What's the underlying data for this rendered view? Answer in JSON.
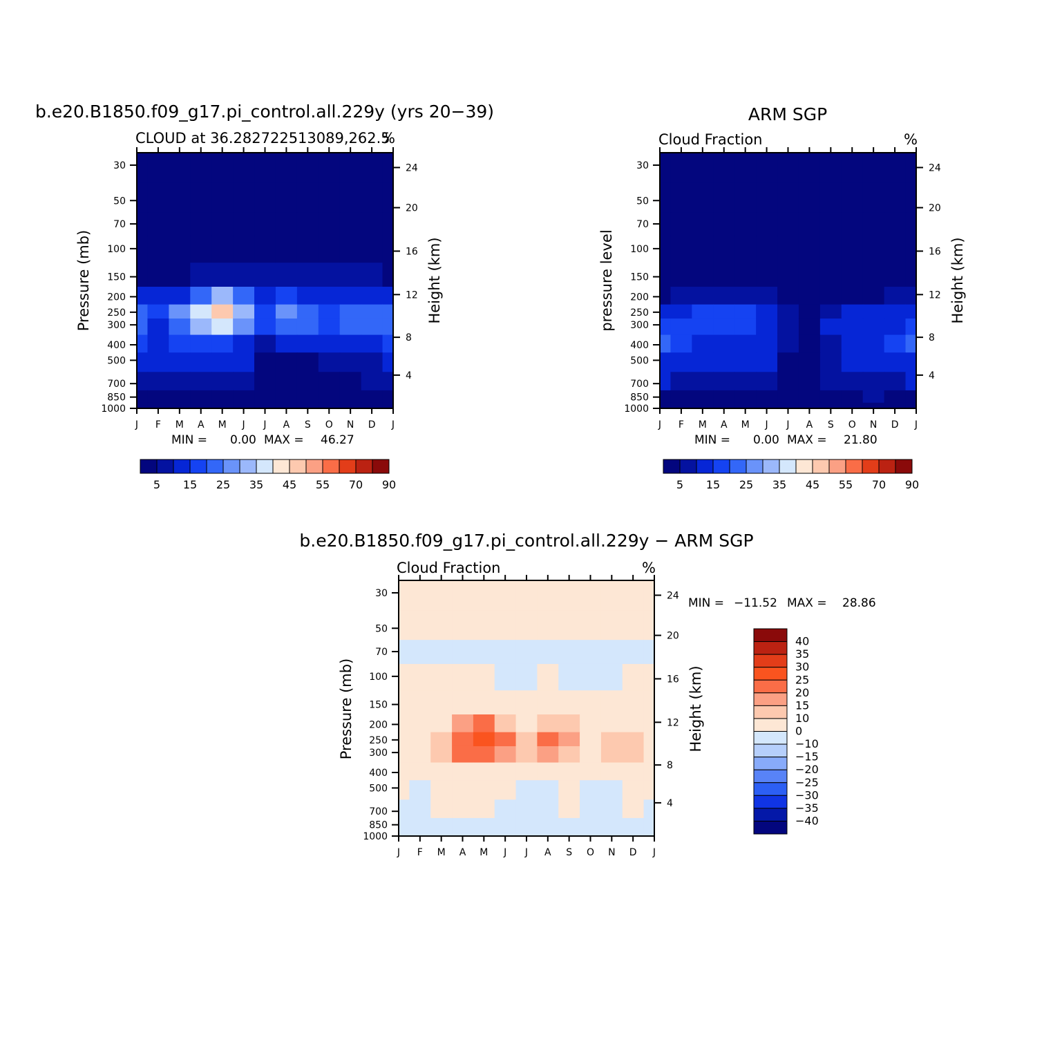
{
  "figure": {
    "colormap": [
      "#03067e",
      "#0412a0",
      "#0626d6",
      "#1543f2",
      "#3367f8",
      "#6a93fa",
      "#9bb8fb",
      "#d4e7fc",
      "#fde7d5",
      "#fdc9af",
      "#fba084",
      "#fa6d47",
      "#e33d19",
      "#bb2212",
      "#8a0a0a"
    ]
  },
  "chart_data": [
    {
      "id": "model",
      "type": "heatmap",
      "title": "b.e20.B1850.f09_g17.pi_control.all.229y (yrs 20−39)",
      "subtitle": "CLOUD at 36.28272251308 9,262.5",
      "subtitle_exact": "CLOUD at 36.282722513089,262.5",
      "units": "%",
      "xlabel": "",
      "ylabel": "Pressure (mb)",
      "y2label": "Height (km)",
      "x_ticks": [
        "J",
        "F",
        "M",
        "A",
        "M",
        "J",
        "J",
        "A",
        "S",
        "O",
        "N",
        "D",
        "J"
      ],
      "y_ticks": [
        "30",
        "50",
        "70",
        "100",
        "150",
        "200",
        "250",
        "300",
        "400",
        "500",
        "700",
        "850",
        "1000"
      ],
      "y2_ticks": [
        "24",
        "20",
        "16",
        "12",
        "8",
        "4"
      ],
      "min_label": "MIN =",
      "min_value": "0.00",
      "max_label": "MAX =",
      "max_value": "46.27",
      "colorbar_labels": [
        "5",
        "15",
        "25",
        "35",
        "45",
        "55",
        "70",
        "90"
      ],
      "months": [
        "J",
        "F",
        "M",
        "A",
        "M",
        "J",
        "J",
        "A",
        "S",
        "O",
        "N",
        "D",
        "J"
      ],
      "levels_mb": [
        30,
        50,
        70,
        100,
        150,
        200,
        250,
        300,
        400,
        500,
        700,
        850,
        1000
      ],
      "values": [
        [
          0,
          0,
          0,
          0,
          0,
          0,
          0,
          0,
          0,
          0,
          0,
          0,
          0
        ],
        [
          0,
          0,
          0,
          0,
          0,
          0,
          0,
          0,
          0,
          0,
          0,
          0,
          0
        ],
        [
          0,
          0,
          0,
          0,
          0,
          0,
          0,
          0,
          0,
          0,
          0,
          0,
          0
        ],
        [
          0,
          0,
          0,
          0,
          0,
          0,
          0,
          0,
          0,
          0,
          0,
          0,
          0
        ],
        [
          4,
          3,
          4,
          6,
          7,
          7,
          6,
          6,
          6,
          5,
          5,
          5,
          4
        ],
        [
          12,
          12,
          14,
          24,
          30,
          24,
          12,
          16,
          14,
          11,
          12,
          12,
          12
        ],
        [
          22,
          16,
          25,
          38,
          46,
          33,
          18,
          26,
          22,
          18,
          22,
          24,
          22
        ],
        [
          22,
          14,
          22,
          32,
          36,
          28,
          16,
          22,
          20,
          18,
          20,
          22,
          22
        ],
        [
          16,
          14,
          16,
          18,
          18,
          14,
          6,
          10,
          12,
          10,
          12,
          14,
          16
        ],
        [
          12,
          10,
          10,
          12,
          12,
          10,
          4,
          4,
          4,
          6,
          6,
          8,
          12
        ],
        [
          8,
          8,
          8,
          8,
          8,
          6,
          2,
          2,
          2,
          4,
          4,
          6,
          8
        ],
        [
          4,
          4,
          4,
          4,
          4,
          4,
          2,
          2,
          2,
          2,
          2,
          4,
          4
        ],
        [
          2,
          2,
          2,
          2,
          2,
          2,
          2,
          2,
          2,
          2,
          2,
          2,
          2
        ]
      ]
    },
    {
      "id": "obs",
      "type": "heatmap",
      "title": "ARM SGP",
      "subtitle": "Cloud Fraction",
      "units": "%",
      "xlabel": "",
      "ylabel": "pressure level",
      "y2label": "Height (km)",
      "x_ticks": [
        "J",
        "F",
        "M",
        "A",
        "M",
        "J",
        "J",
        "A",
        "S",
        "O",
        "N",
        "D",
        "J"
      ],
      "y_ticks": [
        "30",
        "50",
        "70",
        "100",
        "150",
        "200",
        "250",
        "300",
        "400",
        "500",
        "700",
        "850",
        "1000"
      ],
      "y2_ticks": [
        "24",
        "20",
        "16",
        "12",
        "8",
        "4"
      ],
      "min_label": "MIN =",
      "min_value": "0.00",
      "max_label": "MAX =",
      "max_value": "21.80",
      "colorbar_labels": [
        "5",
        "15",
        "25",
        "35",
        "45",
        "55",
        "70",
        "90"
      ],
      "months": [
        "J",
        "F",
        "M",
        "A",
        "M",
        "J",
        "J",
        "A",
        "S",
        "O",
        "N",
        "D",
        "J"
      ],
      "levels_mb": [
        30,
        50,
        70,
        100,
        150,
        200,
        250,
        300,
        400,
        500,
        700,
        850,
        1000
      ],
      "values": [
        [
          0,
          0,
          0,
          0,
          0,
          0,
          0,
          0,
          0,
          0,
          0,
          0,
          0
        ],
        [
          0,
          0,
          0,
          0,
          0,
          0,
          0,
          0,
          0,
          0,
          0,
          0,
          0
        ],
        [
          0,
          0,
          0,
          0,
          0,
          0,
          0,
          0,
          0,
          0,
          0,
          0,
          0
        ],
        [
          0,
          0,
          0,
          0,
          0,
          0,
          0,
          0,
          0,
          0,
          0,
          0,
          0
        ],
        [
          0,
          0,
          0,
          0,
          0,
          0,
          0,
          0,
          0,
          0,
          0,
          0,
          0
        ],
        [
          3,
          6,
          8,
          8,
          8,
          6,
          4,
          2,
          2,
          3,
          4,
          5,
          6
        ],
        [
          14,
          14,
          15,
          15,
          15,
          12,
          8,
          4,
          8,
          10,
          11,
          12,
          14
        ],
        [
          16,
          15,
          15,
          16,
          16,
          14,
          6,
          4,
          10,
          12,
          12,
          13,
          16
        ],
        [
          20,
          16,
          12,
          12,
          12,
          11,
          5,
          4,
          6,
          10,
          10,
          18,
          20
        ],
        [
          14,
          14,
          12,
          12,
          12,
          10,
          4,
          4,
          6,
          10,
          10,
          12,
          14
        ],
        [
          10,
          8,
          6,
          6,
          6,
          5,
          3,
          4,
          5,
          8,
          8,
          8,
          10
        ],
        [
          4,
          4,
          4,
          4,
          4,
          4,
          4,
          4,
          4,
          4,
          6,
          4,
          4
        ],
        [
          2,
          2,
          2,
          2,
          2,
          2,
          2,
          2,
          2,
          2,
          2,
          2,
          2
        ]
      ]
    },
    {
      "id": "diff",
      "type": "heatmap",
      "title": "b.e20.B1850.f09_g17.pi_control.all.229y − ARM SGP",
      "subtitle": "Cloud Fraction",
      "units": "%",
      "xlabel": "",
      "ylabel": "Pressure (mb)",
      "y2label": "Height (km)",
      "x_ticks": [
        "J",
        "F",
        "M",
        "A",
        "M",
        "J",
        "J",
        "A",
        "S",
        "O",
        "N",
        "D",
        "J"
      ],
      "y_ticks": [
        "30",
        "50",
        "70",
        "100",
        "150",
        "200",
        "250",
        "300",
        "400",
        "500",
        "700",
        "850",
        "1000"
      ],
      "y2_ticks": [
        "24",
        "20",
        "16",
        "12",
        "8",
        "4"
      ],
      "min_label": "MIN =",
      "min_value": "−11.52",
      "max_label": "MAX =",
      "max_value": "28.86",
      "colorbar_labels": [
        "40",
        "35",
        "30",
        "25",
        "20",
        "15",
        "10",
        "0",
        "−10",
        "−15",
        "−20",
        "−25",
        "−30",
        "−35",
        "−40"
      ],
      "diff_colors": [
        "#8a0a0a",
        "#bb2212",
        "#e33d19",
        "#fa541f",
        "#fa6d47",
        "#fba084",
        "#fdc9af",
        "#fde7d5",
        "#d4e7fc",
        "#b6cffb",
        "#88abfa",
        "#5883f7",
        "#2c5ff4",
        "#1034e4",
        "#0418a8",
        "#03067e"
      ],
      "months": [
        "J",
        "F",
        "M",
        "A",
        "M",
        "J",
        "J",
        "A",
        "S",
        "O",
        "N",
        "D",
        "J"
      ],
      "levels_mb": [
        30,
        50,
        70,
        100,
        150,
        200,
        250,
        300,
        400,
        500,
        700,
        850,
        1000
      ],
      "values": [
        [
          2,
          2,
          2,
          2,
          2,
          2,
          2,
          2,
          2,
          2,
          2,
          2,
          2
        ],
        [
          2,
          2,
          2,
          2,
          2,
          2,
          2,
          2,
          2,
          2,
          2,
          2,
          2
        ],
        [
          -2,
          -2,
          -2,
          -2,
          -2,
          -2,
          -2,
          -2,
          -2,
          -2,
          -2,
          -2,
          -2
        ],
        [
          2,
          2,
          2,
          2,
          2,
          -2,
          -2,
          2,
          -2,
          -2,
          -2,
          2,
          2
        ],
        [
          2,
          2,
          2,
          2,
          2,
          2,
          2,
          2,
          2,
          2,
          2,
          2,
          2
        ],
        [
          6,
          6,
          8,
          16,
          20,
          14,
          8,
          14,
          12,
          6,
          8,
          8,
          6
        ],
        [
          8,
          8,
          12,
          24,
          28,
          20,
          10,
          22,
          16,
          8,
          14,
          12,
          8
        ],
        [
          6,
          6,
          10,
          20,
          22,
          16,
          10,
          18,
          12,
          8,
          10,
          10,
          6
        ],
        [
          2,
          2,
          4,
          8,
          8,
          6,
          2,
          6,
          4,
          2,
          4,
          4,
          2
        ],
        [
          2,
          -2,
          2,
          2,
          2,
          2,
          -2,
          -2,
          2,
          -2,
          -2,
          2,
          2
        ],
        [
          -2,
          -2,
          2,
          2,
          2,
          -2,
          -2,
          -2,
          2,
          -2,
          -2,
          2,
          -2
        ],
        [
          -2,
          -2,
          -2,
          -2,
          -2,
          -2,
          -2,
          -2,
          -2,
          -2,
          -2,
          -2,
          -2
        ],
        [
          -2,
          -2,
          -2,
          -2,
          -2,
          -2,
          -2,
          -2,
          -2,
          -2,
          -2,
          -2,
          -2
        ]
      ]
    }
  ]
}
